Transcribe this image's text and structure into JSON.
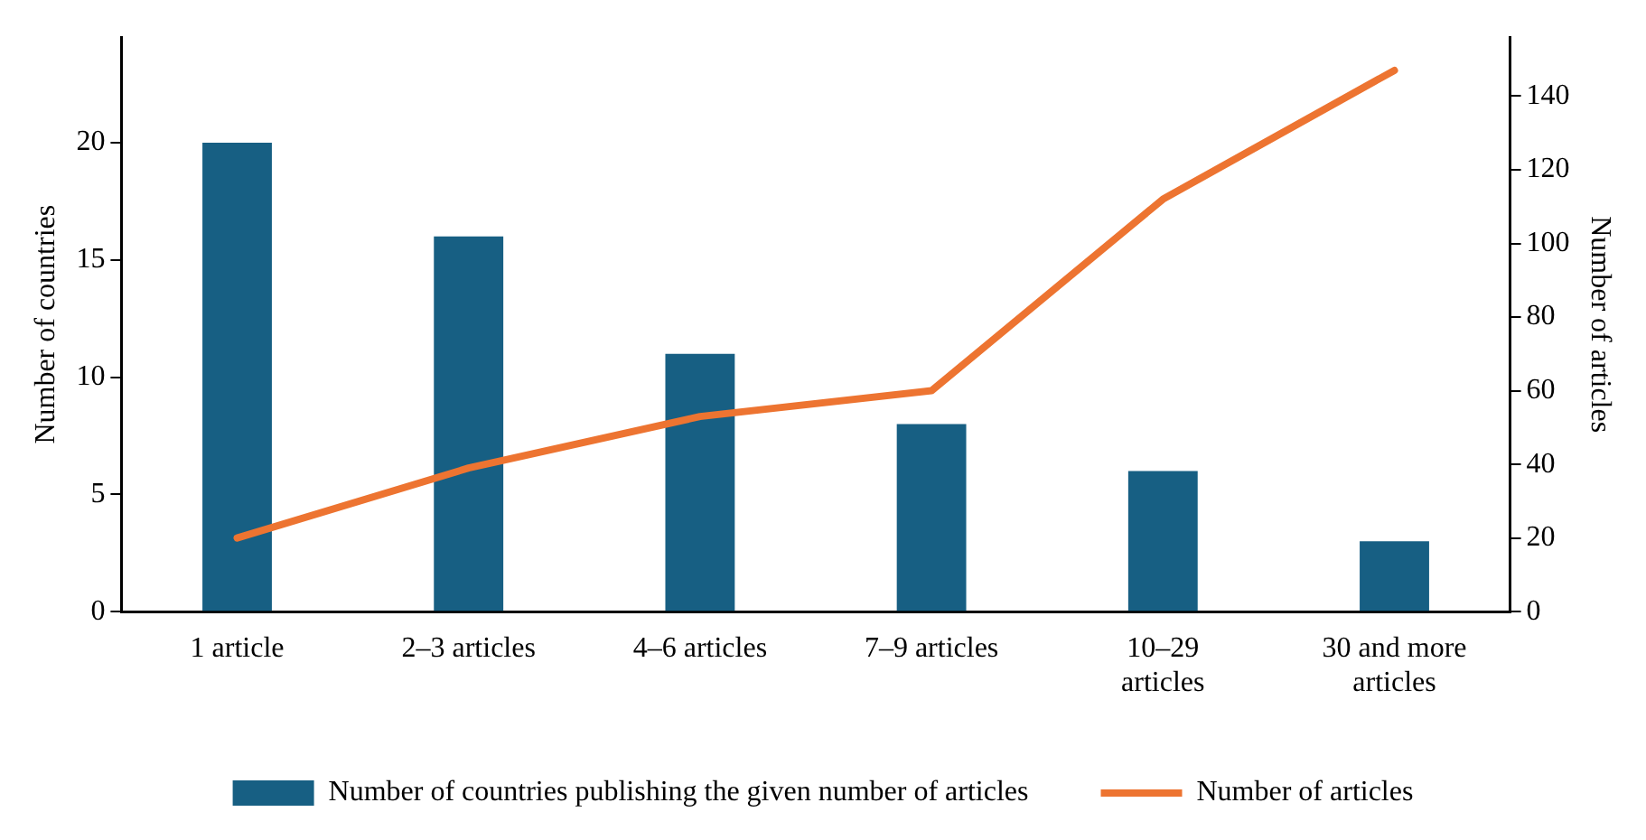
{
  "chart_data": {
    "type": "bar",
    "categories": [
      "1 article",
      "2–3 articles",
      "4–6 articles",
      "7–9 articles",
      "10–29 articles",
      "30 and more articles"
    ],
    "series": [
      {
        "name": "Number of countries publishing the given number of articles",
        "color": "#175f83",
        "values": [
          20,
          16,
          11,
          8,
          6,
          3
        ]
      },
      {
        "name": "Number of articles",
        "type": "line",
        "axis": "y2",
        "color": "#ed7431",
        "values": [
          20,
          39,
          53,
          60,
          112,
          147
        ]
      }
    ],
    "ylabel": "Number of countries",
    "y2label": "Number of articles",
    "ylim": [
      0,
      24.5
    ],
    "yticks": [
      0,
      5,
      10,
      15,
      20
    ],
    "y2lim": [
      0,
      156
    ],
    "y2ticks": [
      0,
      20,
      40,
      60,
      80,
      100,
      120,
      140
    ],
    "grid": false,
    "legend": "bottom",
    "marker": "none"
  }
}
